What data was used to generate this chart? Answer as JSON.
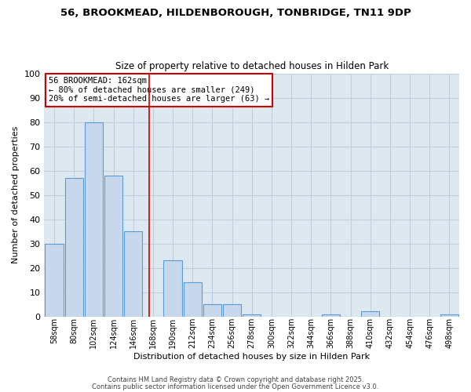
{
  "title": "56, BROOKMEAD, HILDENBOROUGH, TONBRIDGE, TN11 9DP",
  "subtitle": "Size of property relative to detached houses in Hilden Park",
  "xlabel": "Distribution of detached houses by size in Hilden Park",
  "ylabel": "Number of detached properties",
  "bar_labels": [
    "58sqm",
    "80sqm",
    "102sqm",
    "124sqm",
    "146sqm",
    "168sqm",
    "190sqm",
    "212sqm",
    "234sqm",
    "256sqm",
    "278sqm",
    "300sqm",
    "322sqm",
    "344sqm",
    "366sqm",
    "388sqm",
    "410sqm",
    "432sqm",
    "454sqm",
    "476sqm",
    "498sqm"
  ],
  "bar_values": [
    30,
    57,
    80,
    58,
    35,
    0,
    23,
    14,
    5,
    5,
    1,
    0,
    0,
    0,
    1,
    0,
    2,
    0,
    0,
    0,
    1
  ],
  "bar_color": "#c8d8ec",
  "bar_edgecolor": "#5b9bd5",
  "vline_x_index": 5,
  "vline_color": "#cc0000",
  "annotation_line1": "56 BROOKMEAD: 162sqm",
  "annotation_line2": "← 80% of detached houses are smaller (249)",
  "annotation_line3": "20% of semi-detached houses are larger (63) →",
  "annotation_box_color": "white",
  "annotation_box_edgecolor": "#cc0000",
  "ylim": [
    0,
    100
  ],
  "yticks": [
    0,
    10,
    20,
    30,
    40,
    50,
    60,
    70,
    80,
    90,
    100
  ],
  "background_color": "#dde8f0",
  "grid_color": "#c0cfe0",
  "footer1": "Contains HM Land Registry data © Crown copyright and database right 2025.",
  "footer2": "Contains public sector information licensed under the Open Government Licence v3.0.",
  "fig_width": 6.0,
  "fig_height": 5.0,
  "dpi": 100
}
